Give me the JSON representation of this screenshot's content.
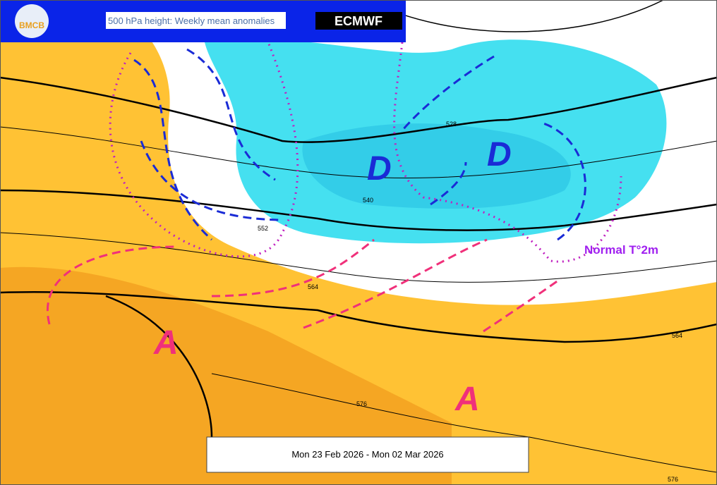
{
  "header": {
    "logo": "BMCB",
    "title": "500 hPa height: Weekly mean anomalies",
    "brand": "ECMWF"
  },
  "map": {
    "lows": [
      "D",
      "D"
    ],
    "highs": [
      "A",
      "A"
    ],
    "annotation": "Normal T°2m",
    "contour_labels": [
      "528",
      "540",
      "552",
      "564",
      "564",
      "576",
      "576"
    ]
  },
  "footer": {
    "date_range": "Mon 23 Feb 2026 - Mon 02 Mar 2026"
  }
}
